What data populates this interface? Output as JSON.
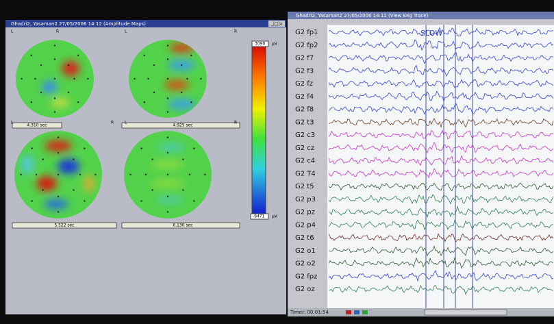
{
  "maps_window": {
    "title": "Ghadri2, Yasaman2 27/05/2006 14:12 (Amplitude Maps)",
    "controls": "_|□|x",
    "maps": [
      {
        "side_left": "L",
        "side_right": "R",
        "time": "4.310 sec"
      },
      {
        "side_left": "L",
        "side_right": "R",
        "time": "4.925 sec"
      },
      {
        "side_left": "L",
        "side_right": "R",
        "time": "5.522 sec"
      },
      {
        "side_left": "L",
        "side_right": "R",
        "time": "6.130 sec"
      }
    ],
    "scale": {
      "max": "3090",
      "min": "-9471",
      "unit": "µV"
    }
  },
  "trace_window": {
    "title": "Ghadri2, Yasaman2 27/05/2006 14:12 (View Eeg Trace)",
    "annotation": "SLOW",
    "timer": "Timer: 00:01:54",
    "channels": [
      {
        "label": "G2 fp1",
        "color": "#3344cc"
      },
      {
        "label": "G2 fp2",
        "color": "#3344cc"
      },
      {
        "label": "G2 f7",
        "color": "#3344cc"
      },
      {
        "label": "G2 f3",
        "color": "#3344cc"
      },
      {
        "label": "G2 fz",
        "color": "#3344cc"
      },
      {
        "label": "G2 f4",
        "color": "#3344cc"
      },
      {
        "label": "G2 f8",
        "color": "#3344cc"
      },
      {
        "label": "G2 t3",
        "color": "#6b3a1e"
      },
      {
        "label": "G2 c3",
        "color": "#cc33cc"
      },
      {
        "label": "G2 cz",
        "color": "#cc33cc"
      },
      {
        "label": "G2 c4",
        "color": "#cc33cc"
      },
      {
        "label": "G2 T4",
        "color": "#cc33cc"
      },
      {
        "label": "G2 t5",
        "color": "#2d5a2d"
      },
      {
        "label": "G2 p3",
        "color": "#2f7f4f"
      },
      {
        "label": "G2 pz",
        "color": "#2f7f4f"
      },
      {
        "label": "G2 p4",
        "color": "#2f7f4f"
      },
      {
        "label": "G2 t6",
        "color": "#6b2a1e"
      },
      {
        "label": "G2 o1",
        "color": "#2d5a2d"
      },
      {
        "label": "G2 o2",
        "color": "#2d5a2d"
      },
      {
        "label": "G2 fpz",
        "color": "#3344cc"
      },
      {
        "label": "G2 oz",
        "color": "#2f7f4f"
      }
    ]
  }
}
